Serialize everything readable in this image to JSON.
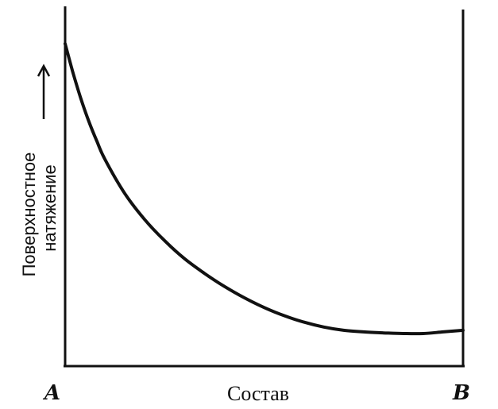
{
  "chart_data": {
    "type": "line",
    "title": "",
    "xlabel": "Состав",
    "ylabel_lines": [
      "Поверхностное",
      "натяжение"
    ],
    "x_end_labels": {
      "left": "A",
      "right": "B"
    },
    "x": [
      0,
      0.02,
      0.04,
      0.06,
      0.08,
      0.1,
      0.15,
      0.2,
      0.25,
      0.3,
      0.35,
      0.4,
      0.45,
      0.5,
      0.55,
      0.6,
      0.65,
      0.7,
      0.75,
      0.8,
      0.85,
      0.9,
      0.95,
      1.0
    ],
    "series": [
      {
        "values": [
          0.94,
          0.85,
          0.77,
          0.7,
          0.64,
          0.585,
          0.48,
          0.4,
          0.335,
          0.28,
          0.235,
          0.195,
          0.16,
          0.13,
          0.105,
          0.085,
          0.07,
          0.06,
          0.055,
          0.052,
          0.05,
          0.05,
          0.055,
          0.06
        ]
      }
    ],
    "xlim": [
      0,
      1
    ],
    "ylim": [
      -0.05,
      1.05
    ],
    "axis_ticks": false,
    "grid": false,
    "legend": "none"
  }
}
